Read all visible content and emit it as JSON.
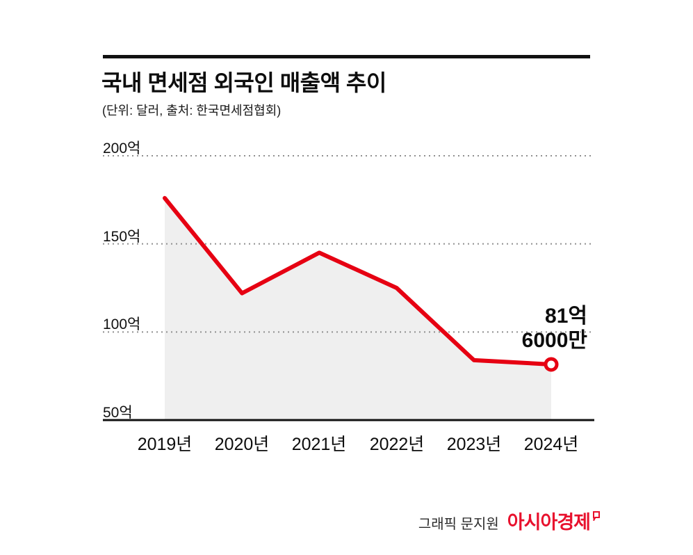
{
  "colors": {
    "line_red": "#e60012",
    "area_gray": "#efefef",
    "brand_red": "#e8112d",
    "text_dark": "#0d0d0d",
    "grid_gray": "#8f8f8f"
  },
  "header": {
    "title": "국내 면세점 외국인 매출액 추이",
    "subtitle": "(단위: 달러, 출처: 한국면세점협회)"
  },
  "chart_data": {
    "type": "line",
    "title": "국내 면세점 외국인 매출액 추이",
    "unit": "억 달러",
    "categories": [
      "2019년",
      "2020년",
      "2021년",
      "2022년",
      "2023년",
      "2024년"
    ],
    "values": [
      176,
      122,
      145,
      125,
      84,
      81.6
    ],
    "ylim": [
      50,
      200
    ],
    "yticks": [
      {
        "value": 200,
        "label": "200억"
      },
      {
        "value": 150,
        "label": "150억"
      },
      {
        "value": 100,
        "label": "100억"
      },
      {
        "value": 50,
        "label": "50억"
      }
    ],
    "grid": "horizontal-dotted",
    "area_fill": true,
    "legend": "none",
    "annotation": {
      "target": "2024년",
      "line1": "81억",
      "line2": "6000만"
    }
  },
  "footer": {
    "credit": "그래픽 문지원",
    "brand": "아시아경제"
  }
}
